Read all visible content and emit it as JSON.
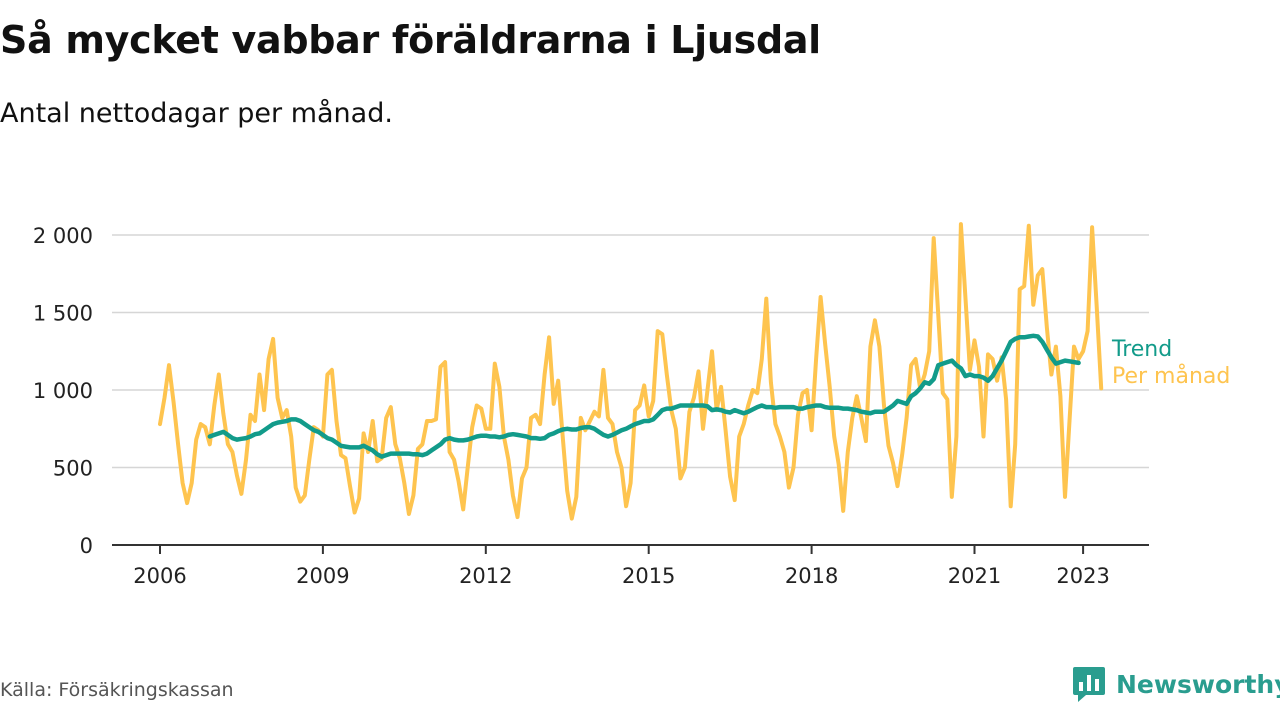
{
  "title": "Så mycket vabbar föräldrarna i Ljusdal",
  "subtitle": "Antal nettodagar per månad.",
  "source": "Källa: Försäkringskassan",
  "brand": {
    "name": "Newsworthy",
    "color": "#2a9d8f",
    "icon": "bar-chart-speech-icon"
  },
  "chart_data": {
    "type": "line",
    "x_axis": {
      "ticks": [
        2006,
        2009,
        2012,
        2015,
        2018,
        2021,
        2023
      ],
      "range": [
        2005.1,
        2024.1
      ]
    },
    "y_axis": {
      "ticks": [
        0,
        500,
        1000,
        1500,
        2000
      ],
      "tick_labels": [
        "0",
        "500",
        "1 000",
        "1 500",
        "2 000"
      ],
      "range": [
        0,
        2100
      ]
    },
    "grid": "horizontal",
    "series": [
      {
        "name": "Per månad",
        "color": "#fec44f",
        "x_start": 2006.0,
        "x_step": 0.08333,
        "values": [
          780,
          950,
          1160,
          920,
          650,
          400,
          270,
          400,
          680,
          780,
          760,
          650,
          900,
          1100,
          850,
          650,
          600,
          450,
          330,
          550,
          840,
          800,
          1100,
          870,
          1200,
          1330,
          950,
          820,
          870,
          700,
          370,
          280,
          320,
          550,
          760,
          740,
          700,
          1100,
          1130,
          800,
          580,
          560,
          380,
          210,
          300,
          720,
          600,
          800,
          540,
          560,
          820,
          890,
          650,
          560,
          400,
          200,
          320,
          620,
          650,
          800,
          800,
          810,
          1150,
          1180,
          600,
          550,
          410,
          230,
          500,
          760,
          900,
          880,
          750,
          750,
          1170,
          1020,
          700,
          550,
          320,
          180,
          430,
          500,
          820,
          840,
          780,
          1100,
          1340,
          910,
          1060,
          700,
          350,
          170,
          310,
          820,
          740,
          800,
          860,
          830,
          1130,
          820,
          780,
          600,
          500,
          250,
          400,
          870,
          900,
          1030,
          830,
          930,
          1380,
          1360,
          1100,
          870,
          750,
          430,
          500,
          860,
          950,
          1120,
          750,
          1000,
          1250,
          870,
          1020,
          740,
          440,
          290,
          700,
          780,
          900,
          1000,
          980,
          1200,
          1590,
          1050,
          780,
          700,
          600,
          370,
          500,
          840,
          980,
          1000,
          740,
          1200,
          1600,
          1300,
          1020,
          700,
          520,
          220,
          600,
          820,
          960,
          820,
          670,
          1280,
          1450,
          1280,
          900,
          640,
          530,
          380,
          580,
          820,
          1160,
          1200,
          1010,
          1100,
          1250,
          1980,
          1480,
          980,
          940,
          310,
          700,
          2070,
          1600,
          1130,
          1320,
          1150,
          700,
          1230,
          1200,
          1060,
          1210,
          940,
          250,
          650,
          1650,
          1670,
          2060,
          1550,
          1740,
          1780,
          1400,
          1100,
          1280,
          960,
          310,
          800,
          1280,
          1200,
          1250,
          1380,
          2050,
          1550,
          1010
        ]
      },
      {
        "name": "Trend",
        "color": "#129b8a",
        "x_start": 2006.917,
        "x_step": 0.08333,
        "values": [
          700,
          710,
          720,
          730,
          710,
          690,
          680,
          685,
          690,
          700,
          715,
          720,
          740,
          760,
          780,
          790,
          795,
          800,
          810,
          810,
          800,
          780,
          760,
          740,
          730,
          710,
          690,
          680,
          660,
          640,
          635,
          630,
          630,
          630,
          640,
          625,
          610,
          585,
          570,
          580,
          590,
          590,
          590,
          590,
          590,
          585,
          585,
          580,
          590,
          610,
          630,
          650,
          680,
          690,
          680,
          675,
          675,
          680,
          690,
          700,
          705,
          705,
          700,
          700,
          695,
          700,
          710,
          715,
          710,
          705,
          700,
          690,
          690,
          685,
          690,
          710,
          720,
          735,
          745,
          750,
          745,
          745,
          755,
          760,
          760,
          750,
          730,
          710,
          700,
          710,
          725,
          740,
          750,
          765,
          780,
          790,
          800,
          800,
          810,
          840,
          870,
          880,
          880,
          890,
          900,
          900,
          900,
          900,
          900,
          900,
          895,
          870,
          875,
          870,
          860,
          855,
          870,
          860,
          850,
          860,
          875,
          890,
          900,
          890,
          890,
          885,
          890,
          890,
          890,
          890,
          880,
          880,
          890,
          895,
          900,
          900,
          890,
          885,
          885,
          885,
          880,
          880,
          875,
          870,
          860,
          855,
          850,
          860,
          860,
          860,
          880,
          900,
          930,
          920,
          910,
          960,
          980,
          1010,
          1050,
          1040,
          1070,
          1160,
          1170,
          1180,
          1190,
          1160,
          1140,
          1090,
          1100,
          1090,
          1090,
          1080,
          1060,
          1090,
          1140,
          1190,
          1250,
          1310,
          1330,
          1340,
          1340,
          1345,
          1350,
          1345,
          1310,
          1260,
          1210,
          1170,
          1180,
          1190,
          1185,
          1180,
          1175
        ]
      }
    ]
  }
}
